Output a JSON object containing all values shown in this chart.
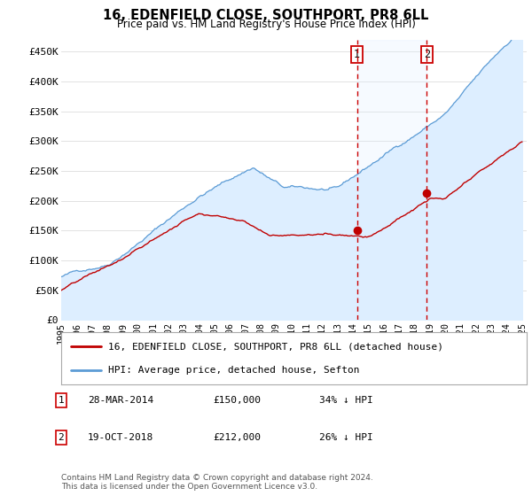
{
  "title": "16, EDENFIELD CLOSE, SOUTHPORT, PR8 6LL",
  "subtitle": "Price paid vs. HM Land Registry's House Price Index (HPI)",
  "ylabel_ticks": [
    "£0",
    "£50K",
    "£100K",
    "£150K",
    "£200K",
    "£250K",
    "£300K",
    "£350K",
    "£400K",
    "£450K"
  ],
  "ytick_values": [
    0,
    50000,
    100000,
    150000,
    200000,
    250000,
    300000,
    350000,
    400000,
    450000
  ],
  "ylim": [
    0,
    470000
  ],
  "hpi_color": "#5b9bd5",
  "hpi_fill_color": "#ddeeff",
  "price_color": "#c00000",
  "year1": 2014.25,
  "price1": 150000,
  "year2": 2018.8,
  "price2": 212000,
  "legend_label_red": "16, EDENFIELD CLOSE, SOUTHPORT, PR8 6LL (detached house)",
  "legend_label_blue": "HPI: Average price, detached house, Sefton",
  "table_rows": [
    {
      "num": "1",
      "date": "28-MAR-2014",
      "price": "£150,000",
      "hpi": "34% ↓ HPI"
    },
    {
      "num": "2",
      "date": "19-OCT-2018",
      "price": "£212,000",
      "hpi": "26% ↓ HPI"
    }
  ],
  "footer": "Contains HM Land Registry data © Crown copyright and database right 2024.\nThis data is licensed under the Open Government Licence v3.0.",
  "background_color": "#ffffff",
  "grid_color": "#dddddd"
}
